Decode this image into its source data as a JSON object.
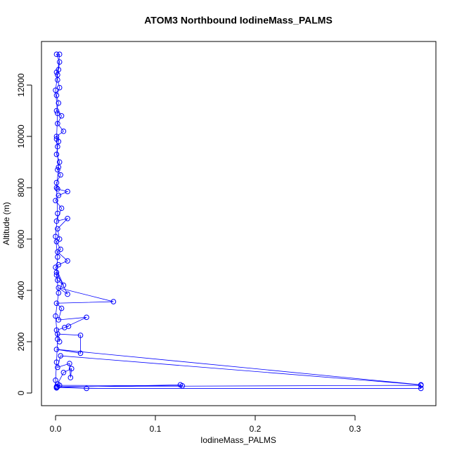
{
  "chart_data": {
    "type": "line",
    "title": "ATOM3 Northbound IodineMass_PALMS",
    "x_label": "IodineMass_PALMS",
    "y_label": "Altitude (m)",
    "color": "#0000ff",
    "x": [
      0.001,
      0.002,
      0.366,
      0.366,
      0.031,
      0.001,
      0.125,
      0.127,
      0.004,
      0.002,
      0.008,
      0.016,
      0.015,
      0.014,
      0.002,
      0.005,
      0.366,
      0.001,
      0.025,
      0.025,
      0.002,
      0.004,
      0.001,
      0.013,
      0.009,
      0.031,
      0.003,
      0.006,
      0.001,
      0.058,
      0.003,
      0.012,
      0.001,
      0.002,
      0.008,
      0.0,
      0.003,
      0.012,
      0.002,
      0.005,
      0.001,
      0.004,
      0.002,
      0.012,
      0.001,
      0.006,
      0.0,
      0.003,
      0.012,
      0.002,
      0.001,
      0.005,
      0.002,
      0.004,
      0.001,
      0.002,
      0.003,
      0.001,
      0.008,
      0.002,
      0.006,
      0.001,
      0.003,
      0.001,
      0.004,
      0.002,
      0.001,
      0.003,
      0.004,
      0.001,
      0.004,
      0.002,
      0.0,
      0.002,
      0.001,
      0.003,
      0.001,
      0.002,
      0.0,
      0.002,
      0.001,
      0.003,
      0.0,
      0.002,
      0.001,
      0.0,
      0.001
    ],
    "values": [
      200,
      250,
      300,
      180,
      180,
      220,
      320,
      280,
      300,
      350,
      800,
      950,
      600,
      1150,
      1000,
      1450,
      320,
      1700,
      1550,
      2250,
      2300,
      2000,
      2450,
      2600,
      2550,
      2950,
      2850,
      3300,
      3500,
      3560,
      4100,
      3850,
      4700,
      4400,
      4200,
      4900,
      5000,
      5150,
      5500,
      5600,
      5900,
      6000,
      6400,
      6800,
      6700,
      7200,
      7500,
      7700,
      7850,
      7950,
      8200,
      8500,
      8700,
      9000,
      9300,
      9600,
      9800,
      10000,
      10200,
      10500,
      10800,
      11000,
      11300,
      11600,
      11900,
      12200,
      12500,
      12600,
      12900,
      13200,
      13200,
      12400,
      11800,
      10900,
      9900,
      8800,
      8000,
      7000,
      6100,
      5300,
      4600,
      3900,
      3000,
      2100,
      1200,
      500,
      250
    ],
    "xlim": [
      -0.0141,
      0.381
    ],
    "ylim": [
      -493,
      13699
    ],
    "xticks": [
      {
        "value": 0,
        "label": "0.0"
      },
      0.1,
      0.2,
      0.3
    ],
    "yticks": [
      0,
      2000,
      4000,
      6000,
      8000,
      10000,
      12000
    ]
  }
}
